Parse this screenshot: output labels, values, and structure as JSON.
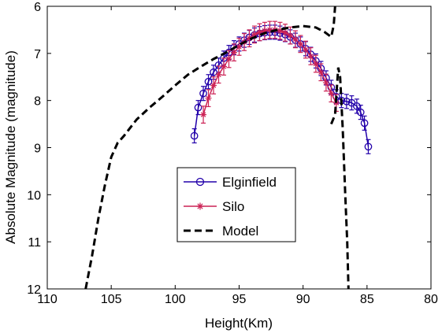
{
  "chart_data": {
    "type": "line",
    "xlabel": "Height(Km)",
    "ylabel": "Absolute Magnitude (magnitude)",
    "xlim": [
      110,
      80
    ],
    "ylim": [
      12,
      6
    ],
    "x_reversed": true,
    "y_reversed": true,
    "xticks": [
      110,
      105,
      100,
      95,
      90,
      85,
      80
    ],
    "xtick_labels": [
      "110",
      "105",
      "100",
      "95",
      "90",
      "85",
      "80"
    ],
    "yticks": [
      6,
      7,
      8,
      9,
      10,
      11,
      12
    ],
    "ytick_labels": [
      "6",
      "7",
      "8",
      "9",
      "10",
      "11",
      "12"
    ],
    "grid": false,
    "legend_position": "center",
    "series": [
      {
        "name": "Elginfield",
        "color": "#2200aa",
        "marker": "circle",
        "error_bars": true,
        "error": 0.15,
        "points": [
          [
            98.5,
            8.75
          ],
          [
            98.2,
            8.15
          ],
          [
            97.8,
            7.85
          ],
          [
            97.4,
            7.6
          ],
          [
            97.0,
            7.4
          ],
          [
            96.6,
            7.25
          ],
          [
            96.2,
            7.1
          ],
          [
            95.8,
            6.98
          ],
          [
            95.4,
            6.88
          ],
          [
            95.0,
            6.8
          ],
          [
            94.6,
            6.72
          ],
          [
            94.2,
            6.66
          ],
          [
            93.8,
            6.61
          ],
          [
            93.4,
            6.58
          ],
          [
            93.0,
            6.56
          ],
          [
            92.6,
            6.55
          ],
          [
            92.2,
            6.55
          ],
          [
            91.8,
            6.57
          ],
          [
            91.4,
            6.6
          ],
          [
            91.0,
            6.65
          ],
          [
            90.6,
            6.72
          ],
          [
            90.2,
            6.8
          ],
          [
            89.8,
            6.9
          ],
          [
            89.4,
            7.02
          ],
          [
            89.0,
            7.16
          ],
          [
            88.6,
            7.32
          ],
          [
            88.2,
            7.52
          ],
          [
            87.8,
            7.72
          ],
          [
            87.4,
            7.92
          ],
          [
            87.0,
            8.0
          ],
          [
            86.6,
            8.02
          ],
          [
            86.2,
            8.05
          ],
          [
            85.8,
            8.12
          ],
          [
            85.5,
            8.25
          ],
          [
            85.2,
            8.48
          ],
          [
            84.9,
            8.98
          ]
        ]
      },
      {
        "name": "Silo",
        "color": "#cc2255",
        "marker": "star",
        "error_bars": true,
        "error": 0.18,
        "points": [
          [
            97.8,
            8.3
          ],
          [
            97.4,
            7.95
          ],
          [
            97.0,
            7.68
          ],
          [
            96.6,
            7.45
          ],
          [
            96.2,
            7.28
          ],
          [
            95.8,
            7.12
          ],
          [
            95.4,
            6.98
          ],
          [
            95.0,
            6.86
          ],
          [
            94.6,
            6.76
          ],
          [
            94.2,
            6.68
          ],
          [
            93.8,
            6.6
          ],
          [
            93.4,
            6.55
          ],
          [
            93.0,
            6.52
          ],
          [
            92.6,
            6.5
          ],
          [
            92.2,
            6.5
          ],
          [
            91.8,
            6.52
          ],
          [
            91.4,
            6.56
          ],
          [
            91.0,
            6.62
          ],
          [
            90.6,
            6.7
          ],
          [
            90.2,
            6.8
          ],
          [
            89.8,
            6.92
          ],
          [
            89.4,
            7.06
          ],
          [
            89.0,
            7.22
          ],
          [
            88.6,
            7.4
          ],
          [
            88.2,
            7.62
          ],
          [
            87.8,
            7.85
          ],
          [
            87.4,
            8.05
          ]
        ]
      },
      {
        "name": "Model",
        "color": "#000000",
        "style": "dashed",
        "points": [
          [
            107.0,
            12.0
          ],
          [
            106.5,
            11.3
          ],
          [
            106.0,
            10.5
          ],
          [
            105.5,
            9.8
          ],
          [
            105.0,
            9.2
          ],
          [
            104.5,
            8.9
          ],
          [
            104.0,
            8.75
          ],
          [
            103.0,
            8.4
          ],
          [
            102.0,
            8.15
          ],
          [
            101.0,
            7.92
          ],
          [
            100.0,
            7.68
          ],
          [
            99.0,
            7.45
          ],
          [
            98.0,
            7.28
          ],
          [
            97.0,
            7.12
          ],
          [
            96.0,
            6.98
          ],
          [
            95.0,
            6.82
          ],
          [
            94.0,
            6.68
          ],
          [
            93.0,
            6.57
          ],
          [
            92.0,
            6.5
          ],
          [
            91.0,
            6.45
          ],
          [
            90.0,
            6.42
          ],
          [
            89.0,
            6.45
          ],
          [
            88.3,
            6.55
          ],
          [
            87.8,
            6.65
          ],
          [
            87.6,
            6.4
          ],
          [
            87.5,
            6.0
          ]
        ],
        "points2": [
          [
            87.8,
            8.5
          ],
          [
            87.5,
            8.3
          ],
          [
            87.25,
            7.3
          ],
          [
            87.1,
            7.5
          ],
          [
            86.9,
            8.6
          ],
          [
            86.7,
            10.0
          ],
          [
            86.55,
            11.0
          ],
          [
            86.45,
            12.0
          ]
        ]
      }
    ]
  }
}
